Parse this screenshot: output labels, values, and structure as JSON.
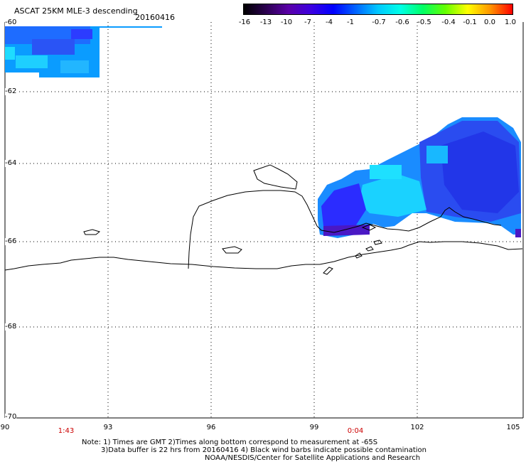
{
  "header": {
    "title": "ASCAT 25KM MLE-3 descending",
    "date": "20160416"
  },
  "colorbar": {
    "labels": [
      "-16",
      "-13",
      "-10",
      "-7",
      "-4",
      "-1",
      "-0.7",
      "-0.6",
      "-0.5",
      "-0.4",
      "-0.1",
      "0.0",
      "1.0"
    ],
    "colors": [
      "#000000",
      "#2b0050",
      "#5a00a8",
      "#3c00e0",
      "#0000ff",
      "#0064ff",
      "#00c8ff",
      "#00ffe6",
      "#00ff64",
      "#64ff00",
      "#ffff00",
      "#ff9600",
      "#ff0000"
    ]
  },
  "map": {
    "lat_labels": [
      "-60",
      "-62",
      "-64",
      "-66",
      "-68",
      "-70"
    ],
    "lon_labels": [
      "90",
      "93",
      "96",
      "99",
      "102",
      "105"
    ],
    "pass_times": [
      "1:43",
      "0:04"
    ]
  },
  "notes": {
    "line1": "Note: 1) Times are GMT 2)Times along bottom correspond to measurement at -65S",
    "line2": "3)Data buffer is 22 hrs from 20160416 4) Black wind barbs indicate possible contamination",
    "line3": "NOAA/NESDIS/Center for Satellite Applications and Research"
  }
}
